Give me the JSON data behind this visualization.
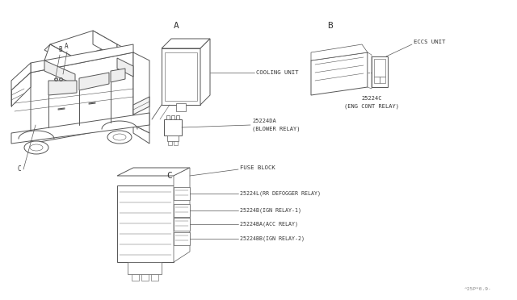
{
  "bg_color": "#ffffff",
  "line_color": "#555555",
  "text_color": "#333333",
  "fig_width": 6.4,
  "fig_height": 3.72,
  "dpi": 100,
  "watermark": "^25P*0.9-",
  "section_A_label": "A",
  "section_B_label": "B",
  "section_C_label": "C",
  "section_B_car_label": "B",
  "section_A_car_label": "A",
  "cooling_unit_label": "COOLING UNIT",
  "part_25224DA": "25224DA",
  "blower_relay_label": "(BLOWER RELAY)",
  "eccs_unit_label": "ECCS UNIT",
  "part_25224C": "25224C",
  "eng_cont_relay_label": "(ENG CONT RELAY)",
  "fuse_block_label": "FUSE BLOCK",
  "part_25224L": "25224L(RR DEFOGGER RELAY)",
  "part_25224B": "25224B(IGN RELAY-1)",
  "part_25224BA": "25224BA(ACC RELAY)",
  "part_25224BB": "25224BB(IGN RELAY-2)"
}
